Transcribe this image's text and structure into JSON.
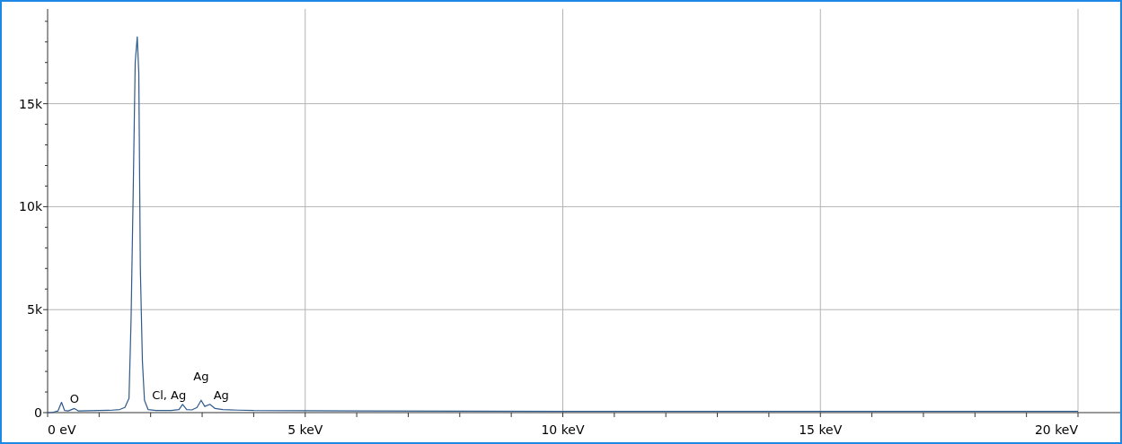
{
  "chart_data": {
    "type": "line",
    "xlim": [
      0,
      20
    ],
    "ylim": [
      0,
      19600
    ],
    "xticks": [
      {
        "value": 0,
        "label": "0 eV"
      },
      {
        "value": 1,
        "label": null
      },
      {
        "value": 2,
        "label": null
      },
      {
        "value": 3,
        "label": null
      },
      {
        "value": 4,
        "label": null
      },
      {
        "value": 5,
        "label": "5 keV"
      },
      {
        "value": 6,
        "label": null
      },
      {
        "value": 7,
        "label": null
      },
      {
        "value": 8,
        "label": null
      },
      {
        "value": 9,
        "label": null
      },
      {
        "value": 10,
        "label": "10 keV"
      },
      {
        "value": 11,
        "label": null
      },
      {
        "value": 12,
        "label": null
      },
      {
        "value": 13,
        "label": null
      },
      {
        "value": 14,
        "label": null
      },
      {
        "value": 15,
        "label": "15 keV"
      },
      {
        "value": 16,
        "label": null
      },
      {
        "value": 17,
        "label": null
      },
      {
        "value": 18,
        "label": null
      },
      {
        "value": 19,
        "label": null
      },
      {
        "value": 20,
        "label": "20 keV"
      }
    ],
    "yticks": [
      {
        "value": 0,
        "label": "0"
      },
      {
        "value": 1000,
        "label": null
      },
      {
        "value": 2000,
        "label": null
      },
      {
        "value": 3000,
        "label": null
      },
      {
        "value": 4000,
        "label": null
      },
      {
        "value": 5000,
        "label": "5k"
      },
      {
        "value": 6000,
        "label": null
      },
      {
        "value": 7000,
        "label": null
      },
      {
        "value": 8000,
        "label": null
      },
      {
        "value": 9000,
        "label": null
      },
      {
        "value": 10000,
        "label": "10k"
      },
      {
        "value": 11000,
        "label": null
      },
      {
        "value": 12000,
        "label": null
      },
      {
        "value": 13000,
        "label": null
      },
      {
        "value": 14000,
        "label": null
      },
      {
        "value": 15000,
        "label": "15k"
      },
      {
        "value": 16000,
        "label": null
      },
      {
        "value": 17000,
        "label": null
      },
      {
        "value": 18000,
        "label": null
      },
      {
        "value": 19000,
        "label": null
      }
    ],
    "grid": true,
    "marker": "none",
    "line_style": "solid",
    "series": [
      {
        "color": "#2e5a8c",
        "x": [
          0,
          0.1,
          0.2,
          0.27,
          0.33,
          0.4,
          0.52,
          0.6,
          0.8,
          1.0,
          1.2,
          1.4,
          1.5,
          1.58,
          1.62,
          1.66,
          1.7,
          1.74,
          1.77,
          1.8,
          1.84,
          1.88,
          1.95,
          2.1,
          2.4,
          2.55,
          2.62,
          2.7,
          2.8,
          2.9,
          2.98,
          3.05,
          3.15,
          3.25,
          3.4,
          3.7,
          4,
          5,
          6,
          8,
          10,
          12,
          14,
          16,
          18,
          20
        ],
        "values": [
          0,
          10,
          80,
          500,
          100,
          80,
          200,
          80,
          90,
          100,
          110,
          150,
          250,
          700,
          4500,
          10500,
          17000,
          18250,
          16500,
          7000,
          2500,
          600,
          150,
          100,
          100,
          150,
          400,
          150,
          130,
          250,
          600,
          300,
          400,
          200,
          150,
          120,
          100,
          90,
          80,
          70,
          60,
          60,
          60,
          60,
          60,
          60
        ]
      }
    ],
    "annotations": [
      {
        "text": "O",
        "x": 0.52,
        "y": 200
      },
      {
        "text": "Cl, Ag",
        "x": 2.62,
        "y": 400
      },
      {
        "text": "Ag",
        "x": 2.98,
        "y": 600
      },
      {
        "text": "Ag",
        "x": 3.15,
        "y": 400
      }
    ]
  }
}
